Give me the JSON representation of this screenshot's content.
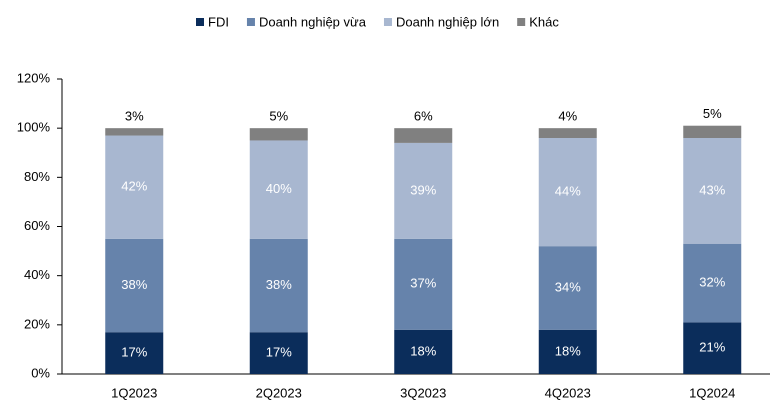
{
  "chart_data": {
    "type": "stacked_bar",
    "categories": [
      "1Q2023",
      "2Q2023",
      "3Q2023",
      "4Q2023",
      "1Q2024"
    ],
    "series": [
      {
        "name": "FDI",
        "color": "#0b2d5b",
        "values": [
          17,
          17,
          18,
          18,
          21
        ],
        "value_labels": [
          "17%",
          "17%",
          "18%",
          "18%",
          "21%"
        ]
      },
      {
        "name": "Doanh nghiệp vừa",
        "color": "#6683ab",
        "values": [
          38,
          38,
          37,
          34,
          32
        ],
        "value_labels": [
          "38%",
          "38%",
          "37%",
          "34%",
          "32%"
        ]
      },
      {
        "name": "Doanh nghiệp lớn",
        "color": "#a8b7d0",
        "values": [
          42,
          40,
          39,
          44,
          43
        ],
        "value_labels": [
          "42%",
          "40%",
          "39%",
          "44%",
          "43%"
        ]
      },
      {
        "name": "Khác",
        "color": "#808080",
        "values": [
          3,
          5,
          6,
          4,
          5
        ],
        "value_labels": [
          "3%",
          "5%",
          "6%",
          "4%",
          "5%"
        ]
      }
    ],
    "ylim": [
      0,
      120
    ],
    "yticks": [
      {
        "value": 0,
        "label": "0%"
      },
      {
        "value": 20,
        "label": "20%"
      },
      {
        "value": 40,
        "label": "40%"
      },
      {
        "value": 60,
        "label": "60%"
      },
      {
        "value": 80,
        "label": "80%"
      },
      {
        "value": 100,
        "label": "100%"
      },
      {
        "value": 120,
        "label": "120%"
      }
    ],
    "legend": "top"
  }
}
